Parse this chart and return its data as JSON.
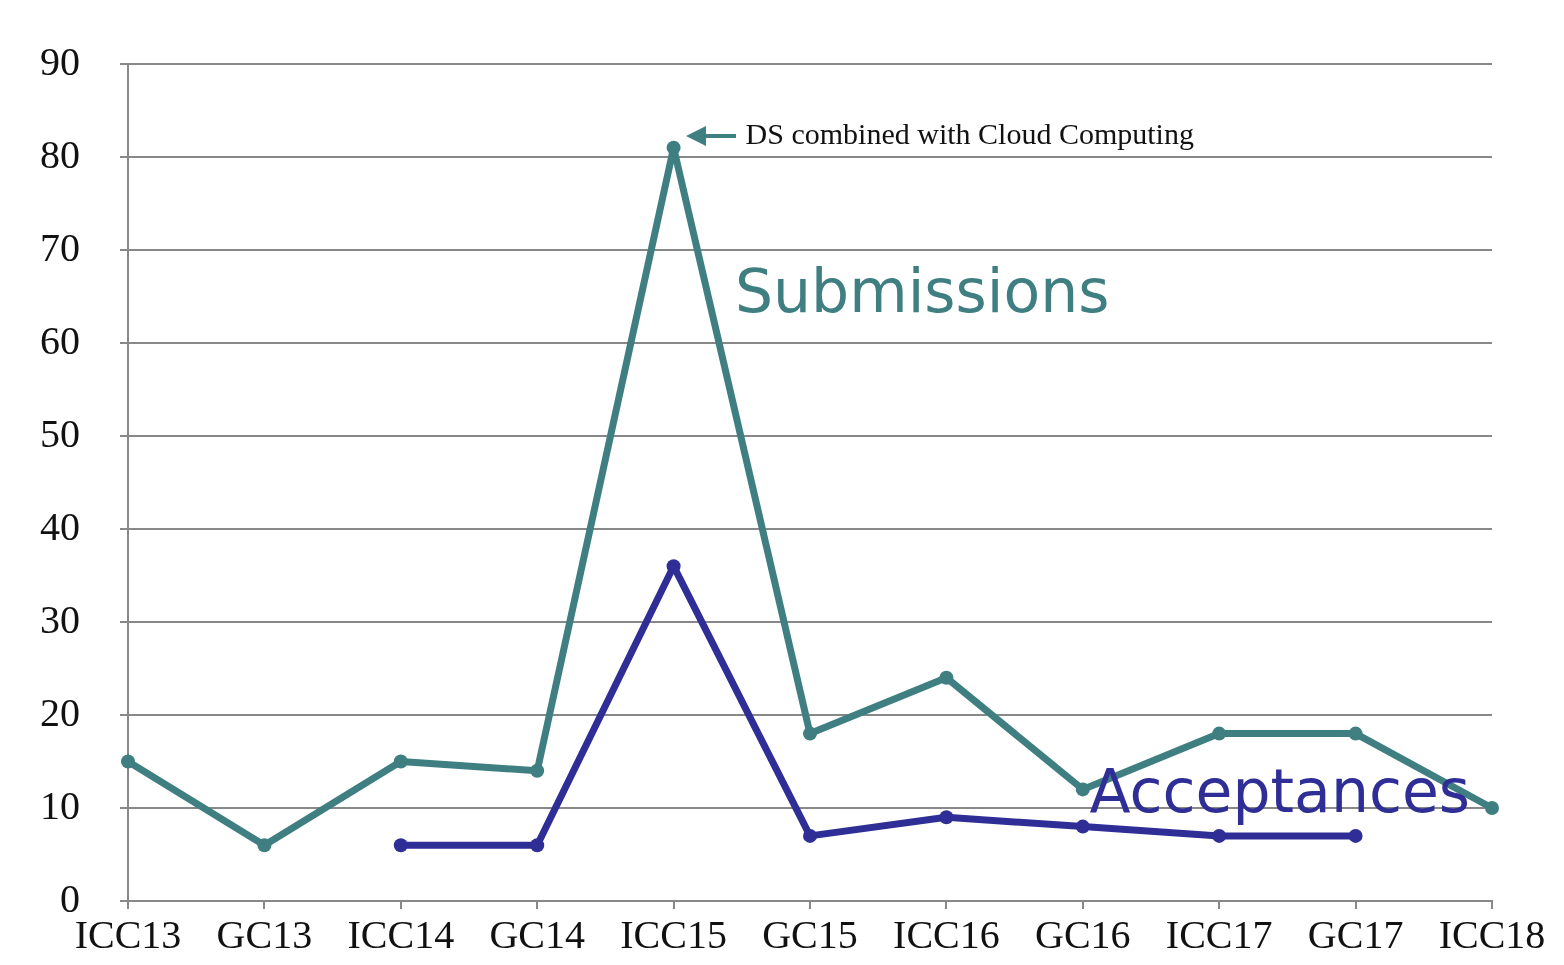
{
  "chart_data": {
    "type": "line",
    "categories": [
      "ICC13",
      "GC13",
      "ICC14",
      "GC14",
      "ICC15",
      "GC15",
      "ICC16",
      "GC16",
      "ICC17",
      "GC17",
      "ICC18"
    ],
    "series": [
      {
        "name": "Submissions",
        "color": "#3f7f82",
        "values": [
          15,
          6,
          15,
          14,
          81,
          18,
          24,
          12,
          18,
          18,
          10
        ]
      },
      {
        "name": "Acceptances",
        "color": "#2e2e96",
        "values": [
          null,
          null,
          6,
          6,
          36,
          7,
          9,
          8,
          7,
          7,
          null
        ]
      }
    ],
    "ylim": [
      0,
      90
    ],
    "yticks": [
      0,
      10,
      20,
      30,
      40,
      50,
      60,
      70,
      80,
      90
    ],
    "grid": "y",
    "legend": false,
    "marker": "circle",
    "line_style": "solid",
    "annotations": [
      {
        "text": "DS combined with Cloud Computing",
        "x": "ICC15",
        "y": 81
      }
    ]
  }
}
